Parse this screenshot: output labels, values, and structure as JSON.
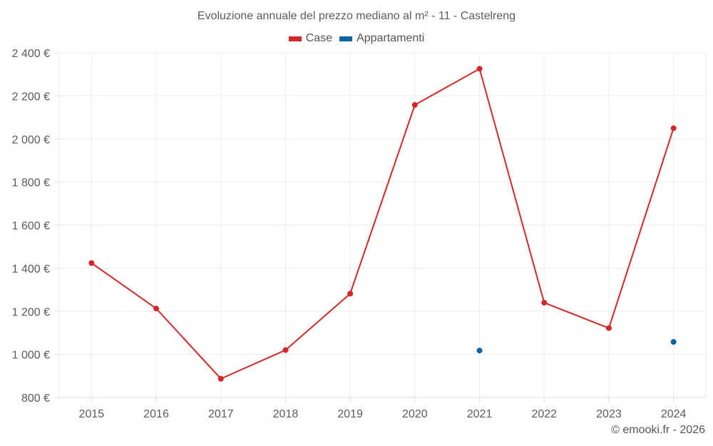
{
  "chart_data": {
    "type": "line",
    "title": "Evoluzione annuale del prezzo mediano al m² - 11 - Castelreng",
    "xlabel": "",
    "ylabel": "",
    "categories": [
      "2015",
      "2016",
      "2017",
      "2018",
      "2019",
      "2020",
      "2021",
      "2022",
      "2023",
      "2024"
    ],
    "series": [
      {
        "name": "Case",
        "color": "#d62728",
        "values": [
          1424,
          1213,
          887,
          1020,
          1282,
          2158,
          2326,
          1240,
          1122,
          2050
        ]
      },
      {
        "name": "Appartamenti",
        "color": "#0868a6",
        "values": [
          null,
          null,
          null,
          null,
          null,
          null,
          1018,
          null,
          null,
          1058
        ]
      }
    ],
    "ylim": [
      800,
      2400
    ],
    "yticks": [
      800,
      1000,
      1200,
      1400,
      1600,
      1800,
      2000,
      2200,
      2400
    ],
    "ytick_labels": [
      "800 €",
      "1 000 €",
      "1 200 €",
      "1 400 €",
      "1 600 €",
      "1 800 €",
      "2 000 €",
      "2 200 €",
      "2 400 €"
    ],
    "grid": true,
    "legend_position": "top"
  },
  "header": {
    "title": "Evoluzione annuale del prezzo mediano al m² - 11 - Castelreng"
  },
  "legend": {
    "items": [
      {
        "label": "Case",
        "color": "#d62728"
      },
      {
        "label": "Appartamenti",
        "color": "#0868a6"
      }
    ]
  },
  "footer": {
    "credit": "© emooki.fr - 2026"
  }
}
